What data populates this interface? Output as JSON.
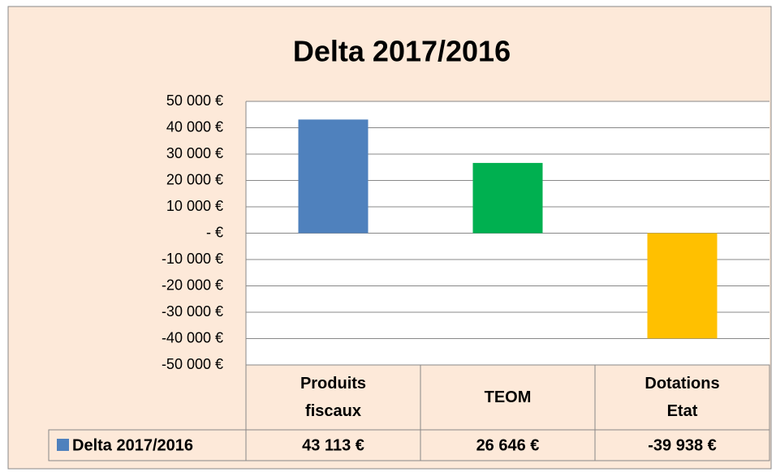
{
  "chart_data": {
    "type": "bar",
    "title": "Delta 2017/2016",
    "categories": [
      "Produits fiscaux",
      "TEOM",
      "Dotations Etat"
    ],
    "series": [
      {
        "name": "Delta 2017/2016",
        "color": "#4f81bd",
        "point_colors": [
          "#4f81bd",
          "#00b050",
          "#ffc000"
        ],
        "values": [
          43113,
          26646,
          -39938
        ],
        "value_labels": [
          "43 113 €",
          "26 646 €",
          "-39 938 €"
        ]
      }
    ],
    "ylim": [
      -50000,
      50000
    ],
    "yticks": [
      {
        "value": -50000,
        "label": "-50 000 €"
      },
      {
        "value": -40000,
        "label": "-40 000 €"
      },
      {
        "value": -30000,
        "label": "-30 000 €"
      },
      {
        "value": -20000,
        "label": "-20 000 €"
      },
      {
        "value": -10000,
        "label": "-10 000 €"
      },
      {
        "value": 0,
        "label": "-  €"
      },
      {
        "value": 10000,
        "label": "10 000 €"
      },
      {
        "value": 20000,
        "label": "20 000 €"
      },
      {
        "value": 30000,
        "label": "30 000 €"
      },
      {
        "value": 40000,
        "label": "40 000 €"
      },
      {
        "value": 50000,
        "label": "50 000 €"
      }
    ],
    "grid": true,
    "data_table": true
  }
}
